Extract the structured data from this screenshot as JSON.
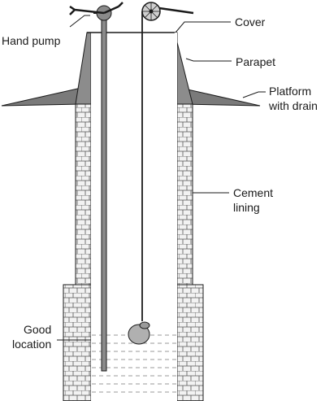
{
  "labels": {
    "hand_pump": "Hand pump",
    "cover": "Cover",
    "parapet": "Parapet",
    "platform_line1": "Platform",
    "platform_line2": "with drain",
    "cement_line1": "Cement",
    "cement_line2": "lining",
    "good_line1": "Good",
    "good_line2": "location"
  },
  "colors": {
    "outline": "#1a1a1a",
    "parapet_fill": "#8c8c8c",
    "platform_fill": "#7a7a7a",
    "pipe_fill": "#8a8a8a",
    "brick_bg": "#f2f2f2",
    "water_line": "#9a9a9a",
    "pot_fill": "#b0b0b0"
  },
  "icons": [
    "hand-pump-icon",
    "pulley-wheel-icon",
    "pot-icon"
  ]
}
